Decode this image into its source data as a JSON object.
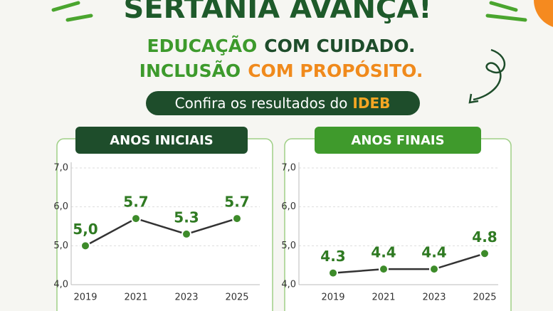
{
  "header": {
    "title": "SERTÂNIA AVANÇA!",
    "line1": [
      "EDUCAÇÃO",
      "COM CUIDADO."
    ],
    "line2": [
      "INCLUSÃO",
      "COM PROPÓSITO."
    ],
    "cta": [
      "Confira os resultados do",
      "IDEB"
    ]
  },
  "chart_data": [
    {
      "type": "line",
      "title": "ANOS INICIAIS",
      "categories": [
        "2019",
        "2021",
        "2023",
        "2025"
      ],
      "values": [
        5.0,
        5.7,
        5.3,
        5.7
      ],
      "value_labels": [
        "5,0",
        "5.7",
        "5.3",
        "5.7"
      ],
      "color": "#3d8b2a",
      "ylim": [
        4,
        7
      ],
      "yticks": [
        {
          "value": 4,
          "label": "4,0"
        },
        {
          "value": 5,
          "label": "5,0"
        },
        {
          "value": 6,
          "label": "6,0"
        },
        {
          "value": 7,
          "label": "7,0"
        }
      ],
      "grid": true
    },
    {
      "type": "line",
      "title": "ANOS FINAIS",
      "categories": [
        "2019",
        "2021",
        "2023",
        "2025"
      ],
      "values": [
        4.3,
        4.4,
        4.4,
        4.8
      ],
      "color": "#3d8b2a",
      "ylim": [
        4,
        7
      ],
      "yticks": [
        {
          "value": 4,
          "label": "4,0"
        },
        {
          "value": 5,
          "label": "5,0"
        },
        {
          "value": 6,
          "label": "6,0"
        },
        {
          "value": 7,
          "label": "7,0"
        }
      ],
      "grid": true
    }
  ]
}
